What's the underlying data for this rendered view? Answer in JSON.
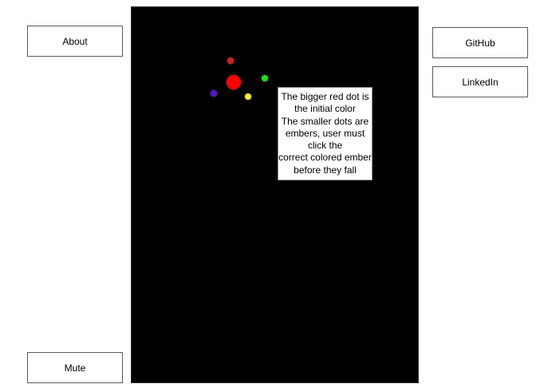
{
  "nav": {
    "about_label": "About",
    "mute_label": "Mute",
    "github_label": "GitHub",
    "linkedin_label": "LinkedIn"
  },
  "game": {
    "background": "#000000",
    "initial_color": "#ff0000",
    "embers": [
      {
        "color": "#e01b1b"
      },
      {
        "color": "#19e219"
      },
      {
        "color": "#5a10d6"
      },
      {
        "color": "#fff01f"
      }
    ],
    "help_lines": [
      "The bigger red dot is",
      "the initial color",
      "The smaller dots are",
      "embers, user must",
      "click the",
      "correct colored ember",
      "before they fall"
    ]
  }
}
